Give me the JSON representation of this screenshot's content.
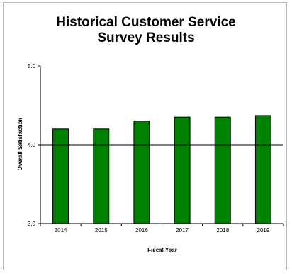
{
  "chart_data": {
    "type": "bar",
    "title_lines": [
      "Historical Customer Service",
      "Survey Results"
    ],
    "xlabel": "Fiscal Year",
    "ylabel": "Overall Satisfaction",
    "categories": [
      "2014",
      "2015",
      "2016",
      "2017",
      "2018",
      "2019"
    ],
    "values": [
      4.2,
      4.2,
      4.3,
      4.35,
      4.35,
      4.37
    ],
    "ylim": [
      3.0,
      5.0
    ],
    "yticks": [
      "3.0",
      "4.0",
      "5.0"
    ],
    "grid": "major line at 4.0",
    "legend": "none",
    "colors": {
      "bar": "#008000",
      "bar_edge": "#000000",
      "frame": "#b8b8b8"
    }
  }
}
